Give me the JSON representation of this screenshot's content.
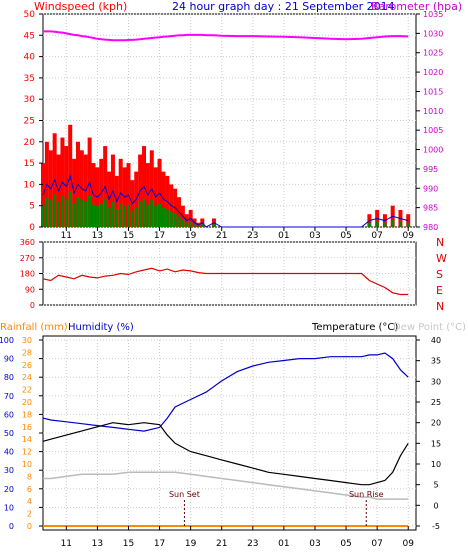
{
  "header": {
    "left_title": "Windspeed (kph)",
    "center_title": "24 hour graph day : 21 September 2014",
    "right_title": "Barometer (hpa)"
  },
  "colors": {
    "wind_title": "#ff0000",
    "center_title": "#0000cc",
    "baro_title": "#cc00cc",
    "wind_gust": "#ff0000",
    "wind_avg": "#0000cc",
    "wind_fill": "#008800",
    "barometer": "#ff00ff",
    "direction": "#dd0000",
    "rain": "#ff8800",
    "humidity": "#0000cc",
    "temperature": "#000000",
    "dewpoint": "#bbbbbb",
    "dew_title": "#c8c8c8",
    "sun_label": "#660000"
  },
  "x_ticks": [
    "11",
    "13",
    "15",
    "17",
    "19",
    "21",
    "23",
    "01",
    "03",
    "05",
    "07",
    "09"
  ],
  "wind_axis": {
    "left_ticks": [
      "50",
      "45",
      "40",
      "35",
      "30",
      "25",
      "20",
      "15",
      "10",
      "5",
      "0"
    ],
    "right_ticks": [
      "1035",
      "1030",
      "1025",
      "1020",
      "1015",
      "1010",
      "1005",
      "1000",
      "995",
      "990",
      "985",
      "980"
    ]
  },
  "direction_axis": {
    "left_ticks": [
      "360",
      "270",
      "180",
      "90",
      "0"
    ],
    "right_labels": [
      "N",
      "W",
      "S",
      "E",
      "N"
    ]
  },
  "lower": {
    "rain_title": "Rainfall (mm)",
    "humidity_title": "Humidity (%)",
    "temp_title": "Temperature (°C)",
    "dew_title": "Dew Point (°C)",
    "rain_ticks": [
      "30",
      "28",
      "26",
      "24",
      "22",
      "20",
      "18",
      "16",
      "14",
      "12",
      "10",
      "8",
      "6",
      "4",
      "2",
      "0"
    ],
    "hum_ticks": [
      "100",
      "90",
      "80",
      "70",
      "60",
      "50",
      "40",
      "30",
      "20",
      "10",
      "0"
    ],
    "temp_ticks": [
      "40",
      "35",
      "30",
      "25",
      "20",
      "15",
      "10",
      "5",
      "0",
      "-5"
    ],
    "sunset_label": "Sun Set",
    "sunrise_label": "Sun Rise"
  },
  "chart_data": [
    {
      "type": "area",
      "xlabel": "",
      "x_hours": [
        9.5,
        9.75,
        10,
        10.25,
        10.5,
        10.75,
        11,
        11.25,
        11.5,
        11.75,
        12,
        12.25,
        12.5,
        12.75,
        13,
        13.25,
        13.5,
        13.75,
        14,
        14.25,
        14.5,
        14.75,
        15,
        15.25,
        15.5,
        15.75,
        16,
        16.25,
        16.5,
        16.75,
        17,
        17.25,
        17.5,
        17.75,
        18,
        18.25,
        18.5,
        18.75,
        19,
        19.25,
        19.5,
        19.75,
        20,
        20.5,
        21,
        22,
        23,
        24,
        25,
        26,
        27,
        28,
        29,
        30,
        30.5,
        31,
        31.5,
        32,
        32.5,
        33
      ],
      "series": [
        {
          "name": "Windspeed (kph)",
          "axis": "left",
          "ylim": [
            0,
            50
          ],
          "values": [
            15,
            20,
            18,
            22,
            17,
            21,
            19,
            24,
            16,
            20,
            18,
            17,
            21,
            15,
            14,
            16,
            19,
            13,
            17,
            12,
            16,
            14,
            15,
            11,
            13,
            17,
            19,
            15,
            18,
            14,
            16,
            13,
            12,
            10,
            9,
            7,
            5,
            3,
            4,
            2,
            1,
            2,
            0,
            2,
            0,
            0,
            0,
            0,
            0,
            0,
            0,
            0,
            0,
            0,
            3,
            4,
            3,
            5,
            4,
            3
          ]
        },
        {
          "name": "Barometer (hpa)",
          "axis": "right",
          "ylim": [
            980,
            1035
          ],
          "values": [
            1030.5,
            1030.5,
            1030.5,
            1030.4,
            1030.3,
            1030.2,
            1030,
            1029.8,
            1029.6,
            1029.5,
            1029.3,
            1029.2,
            1029.0,
            1028.8,
            1028.6,
            1028.5,
            1028.4,
            1028.3,
            1028.2,
            1028.2,
            1028.2,
            1028.2,
            1028.3,
            1028.3,
            1028.4,
            1028.5,
            1028.6,
            1028.7,
            1028.8,
            1028.9,
            1029.0,
            1029.1,
            1029.2,
            1029.3,
            1029.4,
            1029.5,
            1029.5,
            1029.6,
            1029.6,
            1029.6,
            1029.6,
            1029.6,
            1029.5,
            1029.5,
            1029.4,
            1029.3,
            1029.3,
            1029.2,
            1029.1,
            1029.0,
            1028.8,
            1028.6,
            1028.5,
            1028.6,
            1028.8,
            1029.0,
            1029.2,
            1029.3,
            1029.3,
            1029.2
          ]
        }
      ]
    },
    {
      "type": "line",
      "x_hours": [
        9.5,
        10,
        10.5,
        11,
        11.5,
        12,
        12.5,
        13,
        13.5,
        14,
        14.5,
        15,
        15.5,
        16,
        16.5,
        17,
        17.5,
        18,
        18.5,
        19,
        19.5,
        20,
        21,
        22,
        23,
        24,
        25,
        26,
        27,
        28,
        29,
        30,
        30.5,
        31,
        31.5,
        32,
        32.5,
        33
      ],
      "series": [
        {
          "name": "Wind direction",
          "ylim": [
            0,
            360
          ],
          "values": [
            150,
            140,
            170,
            160,
            150,
            170,
            160,
            155,
            165,
            170,
            180,
            175,
            190,
            200,
            210,
            195,
            205,
            190,
            200,
            195,
            185,
            180,
            180,
            180,
            180,
            180,
            180,
            180,
            180,
            180,
            180,
            180,
            140,
            120,
            100,
            70,
            60,
            60
          ]
        }
      ]
    },
    {
      "type": "line",
      "x_hours": [
        9.5,
        10,
        11,
        12,
        13,
        14,
        15,
        16,
        17,
        17.5,
        18,
        19,
        20,
        21,
        22,
        23,
        24,
        25,
        26,
        27,
        28,
        29,
        30,
        30.5,
        31,
        31.5,
        32,
        32.5,
        33
      ],
      "series": [
        {
          "name": "Humidity (%)",
          "axis": "left",
          "ylim": [
            0,
            100
          ],
          "values": [
            58,
            57,
            56,
            55,
            54,
            53,
            52,
            51,
            53,
            58,
            64,
            68,
            72,
            78,
            83,
            86,
            88,
            89,
            90,
            90,
            91,
            91,
            91,
            92,
            92,
            93,
            90,
            84,
            80
          ]
        },
        {
          "name": "Temperature (°C)",
          "axis": "right",
          "ylim": [
            -5,
            40
          ],
          "values": [
            15.5,
            16,
            17,
            18,
            19,
            20,
            19.5,
            20,
            19.5,
            17,
            15,
            13,
            12,
            11,
            10,
            9,
            8,
            7.5,
            7,
            6.5,
            6,
            5.5,
            5,
            5,
            5.5,
            6,
            8,
            12,
            15
          ]
        },
        {
          "name": "Dew Point (°C)",
          "axis": "right",
          "ylim": [
            -5,
            40
          ],
          "values": [
            6.5,
            6.5,
            7,
            7.5,
            7.5,
            7.5,
            8,
            8,
            8,
            8,
            8,
            7.5,
            7,
            6.5,
            6,
            5.5,
            5,
            4.5,
            4,
            3.5,
            3,
            2.5,
            2,
            2,
            1.5,
            1.5,
            1.5,
            1.5,
            1.5
          ]
        },
        {
          "name": "Rainfall (mm)",
          "axis": "left",
          "ylim": [
            0,
            30
          ],
          "values": [
            0,
            0,
            0,
            0,
            0,
            0,
            0,
            0,
            0,
            0,
            0,
            0,
            0,
            0,
            0,
            0,
            0,
            0,
            0,
            0,
            0,
            0,
            0,
            0,
            0,
            0,
            0,
            0,
            0
          ]
        }
      ],
      "annotations": [
        "Sun Set",
        "Sun Rise"
      ]
    }
  ]
}
